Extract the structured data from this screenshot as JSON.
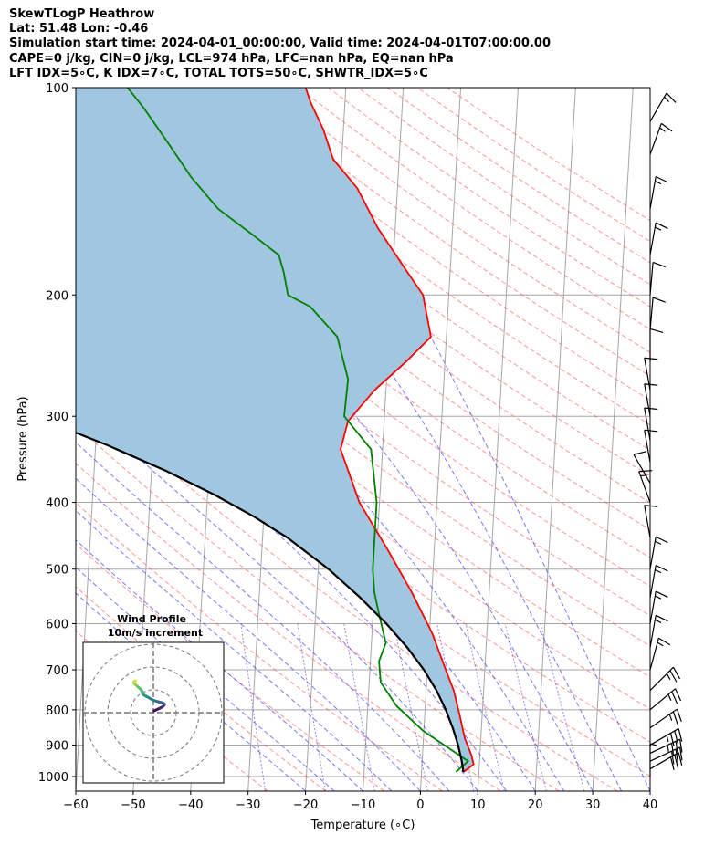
{
  "header": {
    "line1": "SkewTLogP Heathrow",
    "line2": "Lat: 51.48   Lon: -0.46",
    "line3": "Simulation start time: 2024-04-01_00:00:00, Valid time: 2024-04-01T07:00:00.00",
    "line4": "CAPE=0 j/kg, CIN=0 j/kg, LCL=974 hPa, LFC=nan hPa, EQ=nan hPa",
    "line5": "LFT IDX=5∘C, K IDX=7∘C, TOTAL TOTS=50∘C, SHWTR_IDX=5∘C"
  },
  "colors": {
    "temperature": "#ff0000",
    "dewpoint": "#008000",
    "parcel": "#000000",
    "cape_fill": "#a1c6df",
    "dry_adiabat": "#ff4d4d",
    "moist_adiabat": "#3f3fff",
    "mixing_ratio": "#7d4cc9",
    "isotherm": "#a6a6a6"
  },
  "chart_data": {
    "type": "line",
    "title": "",
    "xlabel": "Temperature (∘C)",
    "ylabel": "Pressure (hPa)",
    "xlim": [
      -60,
      40
    ],
    "ylim": [
      1050,
      100
    ],
    "y_scale": "log",
    "grid": true,
    "x_ticks": [
      "−60",
      "−50",
      "−40",
      "−30",
      "−20",
      "−10",
      "0",
      "10",
      "20",
      "30",
      "40"
    ],
    "y_ticks": [
      "100",
      "200",
      "300",
      "400",
      "500",
      "600",
      "700",
      "800",
      "900",
      "1000"
    ],
    "series": [
      {
        "key": "temperature",
        "x": [
          7.3,
          9.0,
          8.5,
          7.2,
          6.0,
          4.8,
          3.2,
          0.5,
          -3.5,
          -8.0,
          -13.5,
          -17.3,
          -16.3,
          -12.0,
          -6.8,
          -2.7,
          -4.5,
          -7.5,
          -13.0,
          -17.0,
          -21.5,
          -23.5,
          -26.0,
          -27.0
        ],
        "p": [
          985,
          960,
          930,
          880,
          810,
          750,
          700,
          620,
          540,
          470,
          400,
          335,
          305,
          275,
          250,
          230,
          200,
          185,
          160,
          140,
          127,
          115,
          105,
          100
        ]
      },
      {
        "key": "dewpoint",
        "x": [
          6.0,
          8.0,
          5.0,
          0.0,
          -5.0,
          -8.0,
          -8.5,
          -7.5,
          -9.0,
          -10.0,
          -10.5,
          -10.5,
          -10.5,
          -12.0,
          -17.0,
          -16.7,
          -19.0,
          -24.0,
          -28.0,
          -29.0,
          -30.0,
          -35.0,
          -41.0,
          -46.0,
          -50.5,
          -55.0,
          -58.0
        ],
        "p": [
          985,
          950,
          915,
          860,
          790,
          730,
          680,
          640,
          580,
          540,
          500,
          460,
          400,
          335,
          300,
          265,
          230,
          208,
          200,
          185,
          175,
          163,
          150,
          135,
          120,
          107,
          100
        ]
      },
      {
        "key": "parcel",
        "x": [
          7.3,
          6.9,
          6.1,
          5.0,
          3.6,
          1.8,
          -0.6,
          -3.7,
          -7.6,
          -12.4,
          -18.2,
          -25.7,
          -31.6,
          -38.8,
          -47.5,
          -58.1,
          -71.0
        ],
        "p": [
          985,
          950,
          900,
          850,
          800,
          750,
          700,
          650,
          600,
          550,
          500,
          450,
          420,
          390,
          360,
          330,
          300
        ]
      }
    ],
    "fill_between": [
      "temperature",
      "parcel"
    ],
    "wind_barbs": [
      {
        "p": 1000,
        "speed": 5,
        "dir": 0
      },
      {
        "p": 975,
        "speed": 30,
        "dir": 60
      },
      {
        "p": 950,
        "speed": 30,
        "dir": 65
      },
      {
        "p": 925,
        "speed": 35,
        "dir": 65
      },
      {
        "p": 900,
        "speed": 35,
        "dir": 60
      },
      {
        "p": 850,
        "speed": 25,
        "dir": 55
      },
      {
        "p": 800,
        "speed": 25,
        "dir": 50
      },
      {
        "p": 750,
        "speed": 25,
        "dir": 45
      },
      {
        "p": 700,
        "speed": 15,
        "dir": 15
      },
      {
        "p": 650,
        "speed": 15,
        "dir": 10
      },
      {
        "p": 600,
        "speed": 15,
        "dir": 10
      },
      {
        "p": 550,
        "speed": 15,
        "dir": 10
      },
      {
        "p": 500,
        "speed": 15,
        "dir": 10
      },
      {
        "p": 450,
        "speed": 10,
        "dir": 350
      },
      {
        "p": 400,
        "speed": 15,
        "dir": 340
      },
      {
        "p": 375,
        "speed": 10,
        "dir": 330
      },
      {
        "p": 350,
        "speed": 10,
        "dir": 350
      },
      {
        "p": 325,
        "speed": 10,
        "dir": 350
      },
      {
        "p": 300,
        "speed": 10,
        "dir": 350
      },
      {
        "p": 275,
        "speed": 10,
        "dir": 350
      },
      {
        "p": 250,
        "speed": 10,
        "dir": 0
      },
      {
        "p": 225,
        "speed": 10,
        "dir": 5
      },
      {
        "p": 200,
        "speed": 10,
        "dir": 5
      },
      {
        "p": 175,
        "speed": 15,
        "dir": 10
      },
      {
        "p": 150,
        "speed": 15,
        "dir": 10
      },
      {
        "p": 125,
        "speed": 15,
        "dir": 20
      },
      {
        "p": 112,
        "speed": 15,
        "dir": 30
      }
    ],
    "hodograph": {
      "title": "Wind Profile",
      "subtitle": "10m/s increment",
      "u": [
        0.3,
        1.2,
        2.7,
        4.0,
        4.6,
        4.9,
        4.0,
        2.0,
        -0.2,
        -1.6,
        -3.0,
        -4.1,
        -4.7,
        -4.9,
        -5.2,
        -6.3,
        -7.4,
        -8.4,
        -8.6,
        -8.0,
        -7.8
      ],
      "v": [
        0.8,
        1.2,
        1.9,
        2.6,
        3.1,
        3.7,
        4.3,
        4.8,
        5.5,
        6.3,
        7.1,
        7.7,
        8.2,
        9.0,
        9.9,
        10.9,
        11.9,
        12.7,
        13.4,
        13.7,
        14.0
      ]
    }
  }
}
